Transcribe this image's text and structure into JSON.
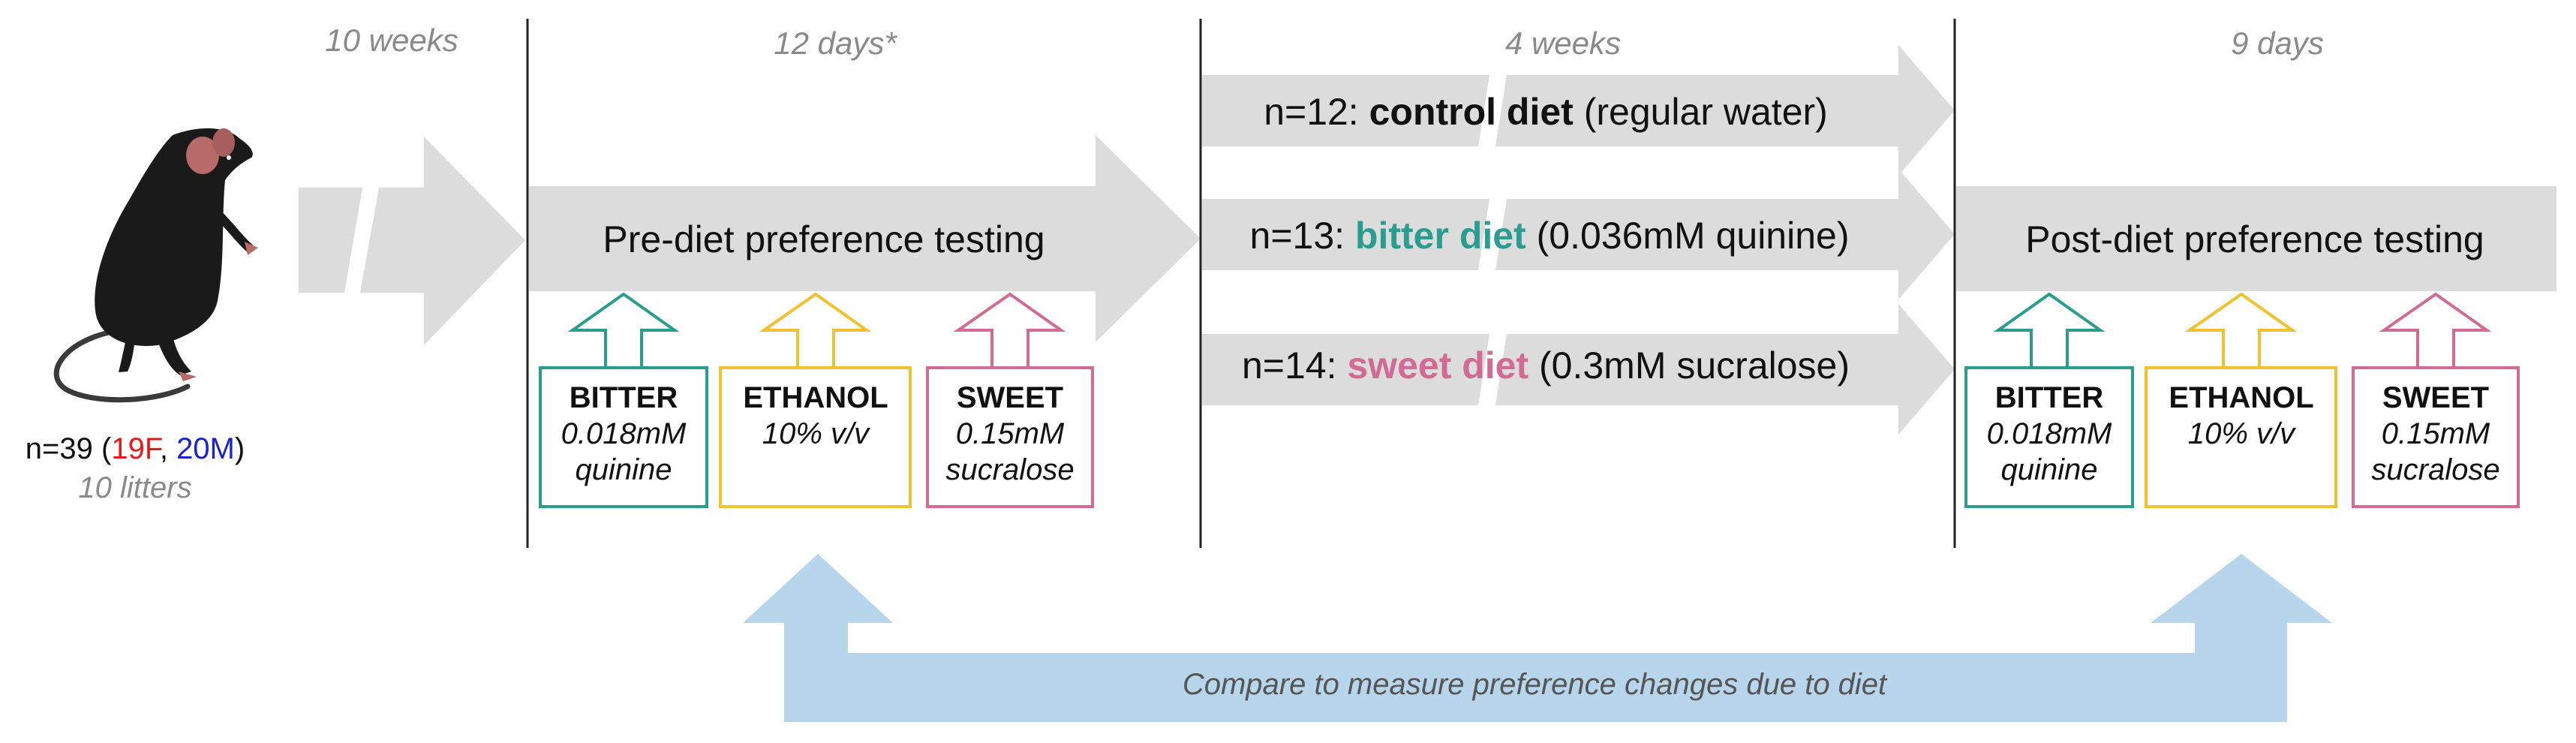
{
  "colors": {
    "arrow_gray": "#dcdcdc",
    "compare_blue": "#b7d6ec",
    "bitter": "#2a9d8f",
    "ethanol": "#f2c12e",
    "sweet": "#d16b93",
    "female": "#e8191c",
    "male": "#1a22d6",
    "divider": "#222222"
  },
  "icons": {
    "mouse": "mouse-icon"
  },
  "phases": {
    "acclimation": "10 weeks",
    "pre_test": "12 days*",
    "diet": "4 weeks",
    "post_test": "9 days"
  },
  "stages": {
    "pre": "Pre-diet preference testing",
    "post": "Post-diet preference testing"
  },
  "cohort": {
    "prefix": "n=39 (",
    "female": "19F",
    "sep": ", ",
    "male": "20M",
    "suffix": ")",
    "litters": "10 litters"
  },
  "diets": {
    "control": {
      "n": "n=12: ",
      "name": "control diet",
      "detail": " (regular water)"
    },
    "bitter": {
      "n": "n=13: ",
      "name": "bitter diet",
      "detail": " (0.036mM quinine)"
    },
    "sweet": {
      "n": "n=14: ",
      "name": "sweet diet",
      "detail": " (0.3mM sucralose)"
    }
  },
  "tests": {
    "bitter": {
      "title": "BITTER",
      "line1": "0.018mM",
      "line2": "quinine"
    },
    "ethanol": {
      "title": "ETHANOL",
      "line1": "10% v/v"
    },
    "sweet": {
      "title": "SWEET",
      "line1": "0.15mM",
      "line2": "sucralose"
    }
  },
  "compare": "Compare to measure preference changes due to diet"
}
